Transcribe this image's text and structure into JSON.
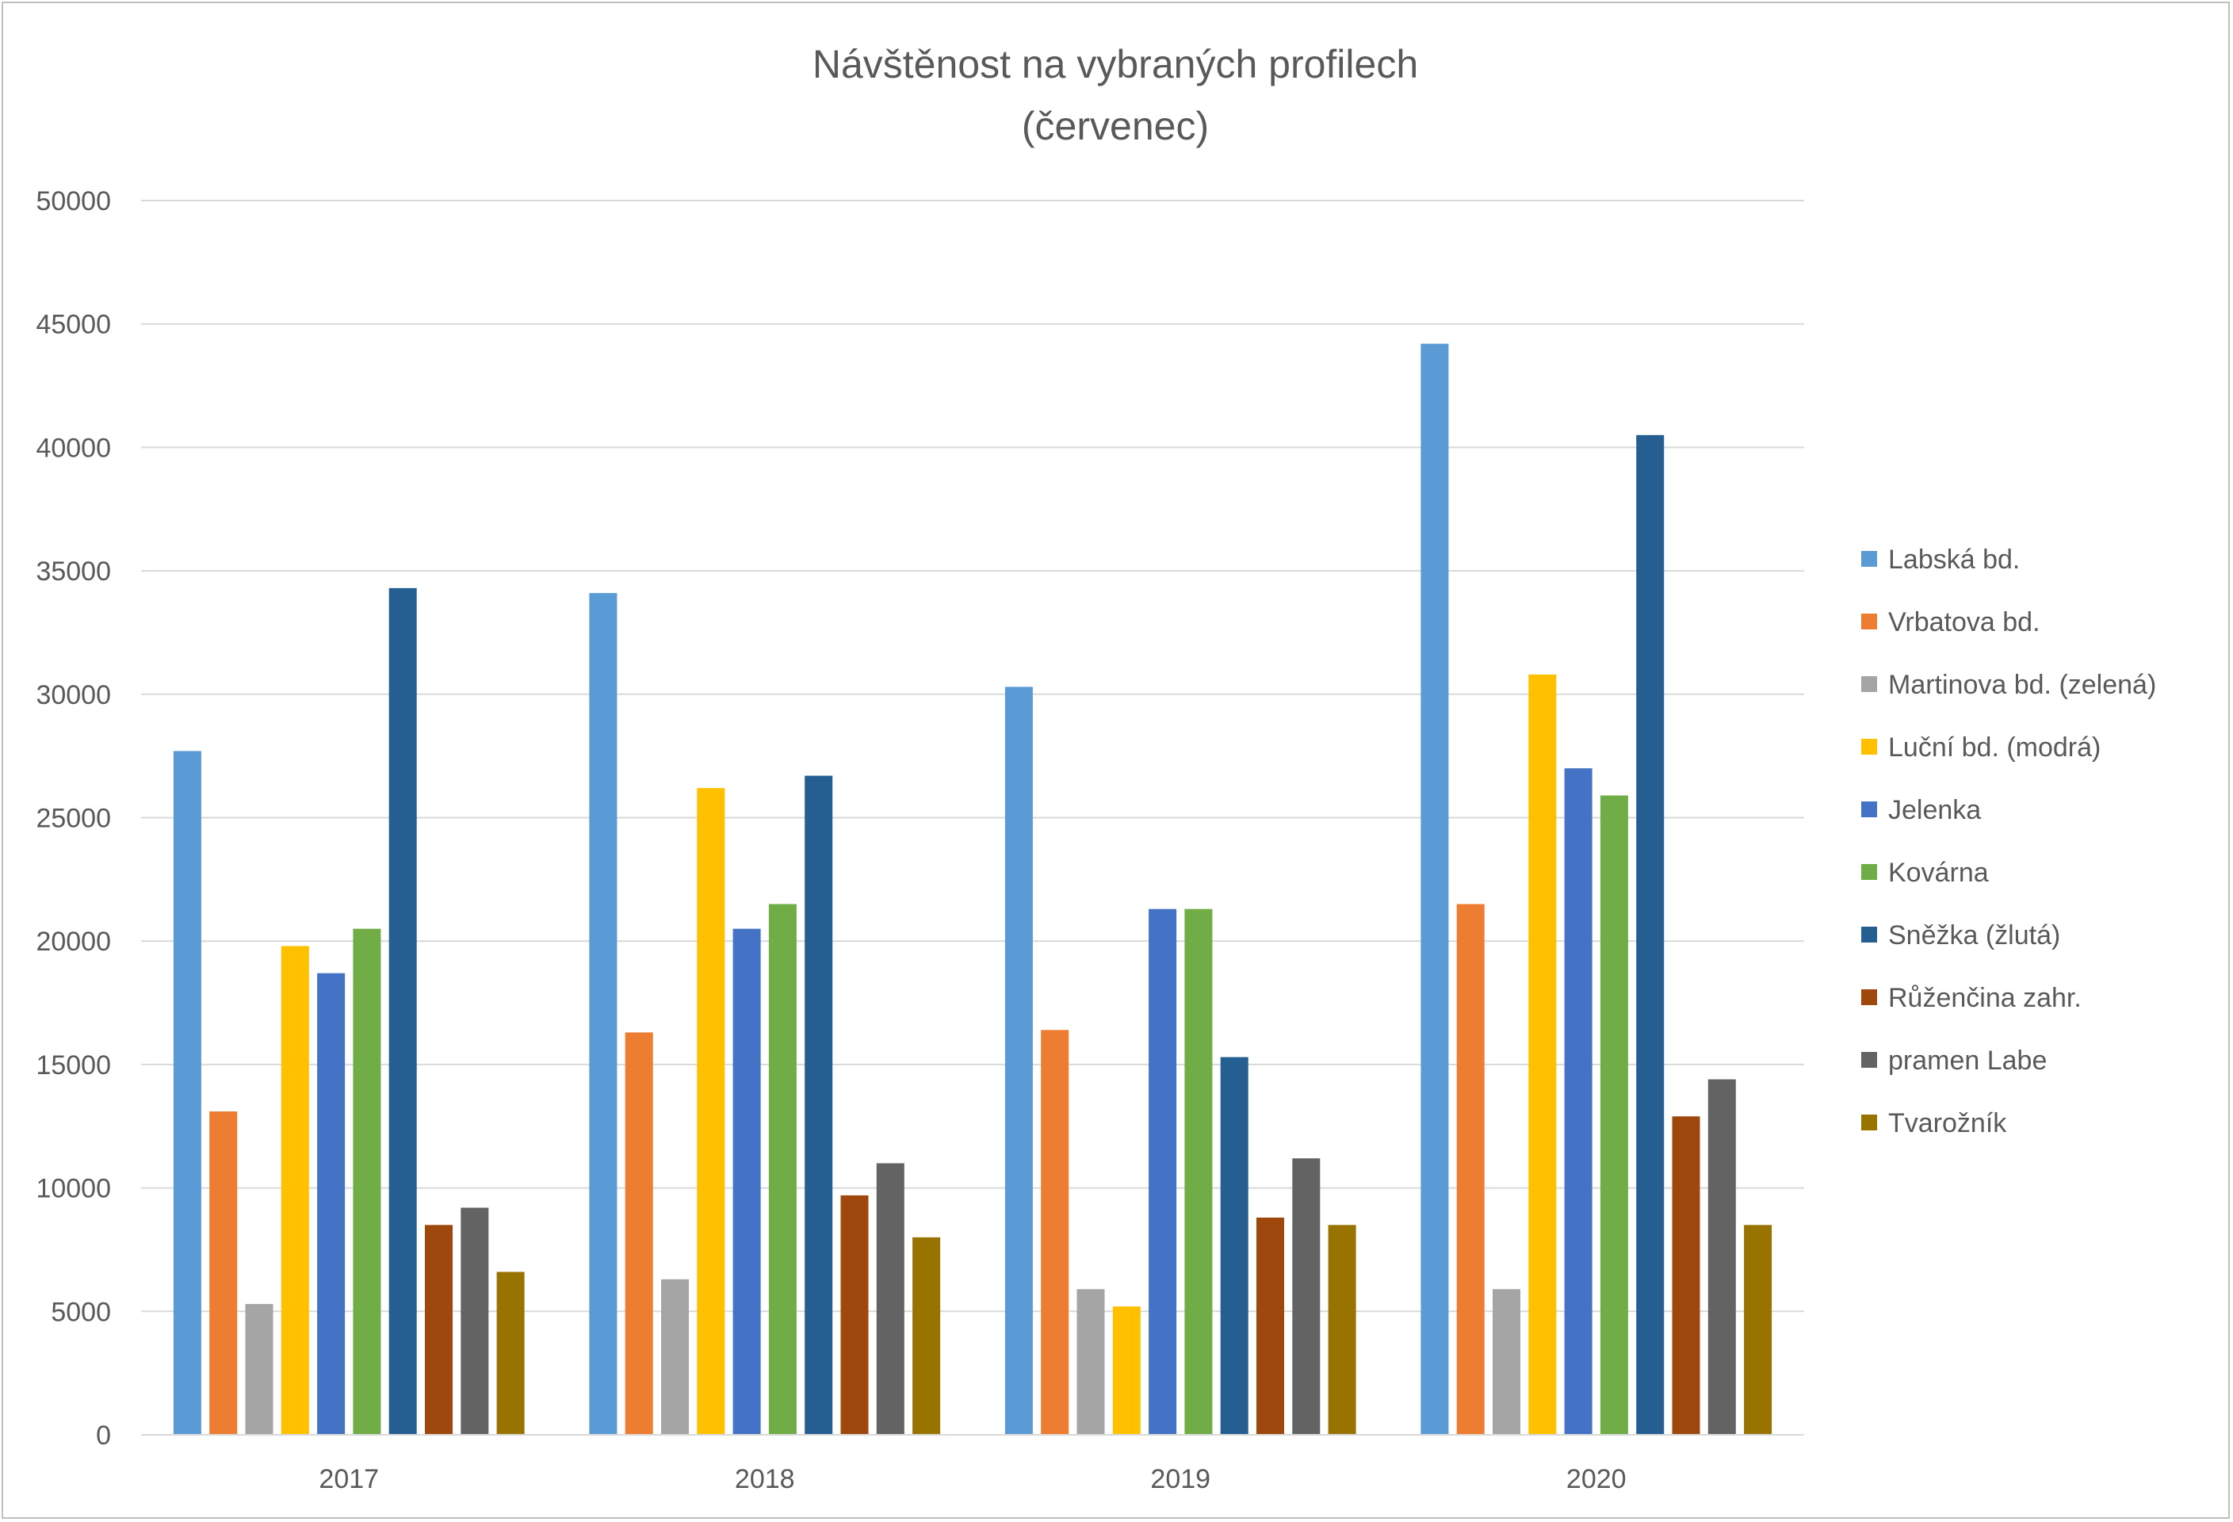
{
  "chart_data": {
    "type": "bar",
    "title": "Návštěnost na vybraných  profilech",
    "subtitle": "(červenec)",
    "xlabel": "",
    "ylabel": "",
    "ylim": [
      0,
      50000
    ],
    "yticks": [
      "0",
      "5000",
      "10000",
      "15000",
      "20000",
      "25000",
      "30000",
      "35000",
      "40000",
      "45000",
      "50000"
    ],
    "grid": true,
    "legend_position": "right",
    "categories": [
      "2017",
      "2018",
      "2019",
      "2020"
    ],
    "series": [
      {
        "name": "Labská bd.",
        "color": "#5B9BD5",
        "values": [
          27700,
          34100,
          30300,
          44200
        ]
      },
      {
        "name": "Vrbatova bd.",
        "color": "#ED7D31",
        "values": [
          13100,
          16300,
          16400,
          21500
        ]
      },
      {
        "name": "Martinova bd. (zelená)",
        "color": "#A5A5A5",
        "values": [
          5300,
          6300,
          5900,
          5900
        ]
      },
      {
        "name": "Luční bd. (modrá)",
        "color": "#FFC000",
        "values": [
          19800,
          26200,
          5200,
          30800
        ]
      },
      {
        "name": "Jelenka",
        "color": "#4472C4",
        "values": [
          18700,
          20500,
          21300,
          27000
        ]
      },
      {
        "name": "Kovárna",
        "color": "#70AD47",
        "values": [
          20500,
          21500,
          21300,
          25900
        ]
      },
      {
        "name": "Sněžka (žlutá)",
        "color": "#255E91",
        "values": [
          34300,
          26700,
          15300,
          40500
        ]
      },
      {
        "name": "Růženčina zahr.",
        "color": "#9E480E",
        "values": [
          8500,
          9700,
          8800,
          12900
        ]
      },
      {
        "name": "pramen Labe",
        "color": "#636363",
        "values": [
          9200,
          11000,
          11200,
          14400
        ]
      },
      {
        "name": "Tvarožník",
        "color": "#997300",
        "values": [
          6600,
          8000,
          8500,
          8500
        ]
      }
    ]
  }
}
